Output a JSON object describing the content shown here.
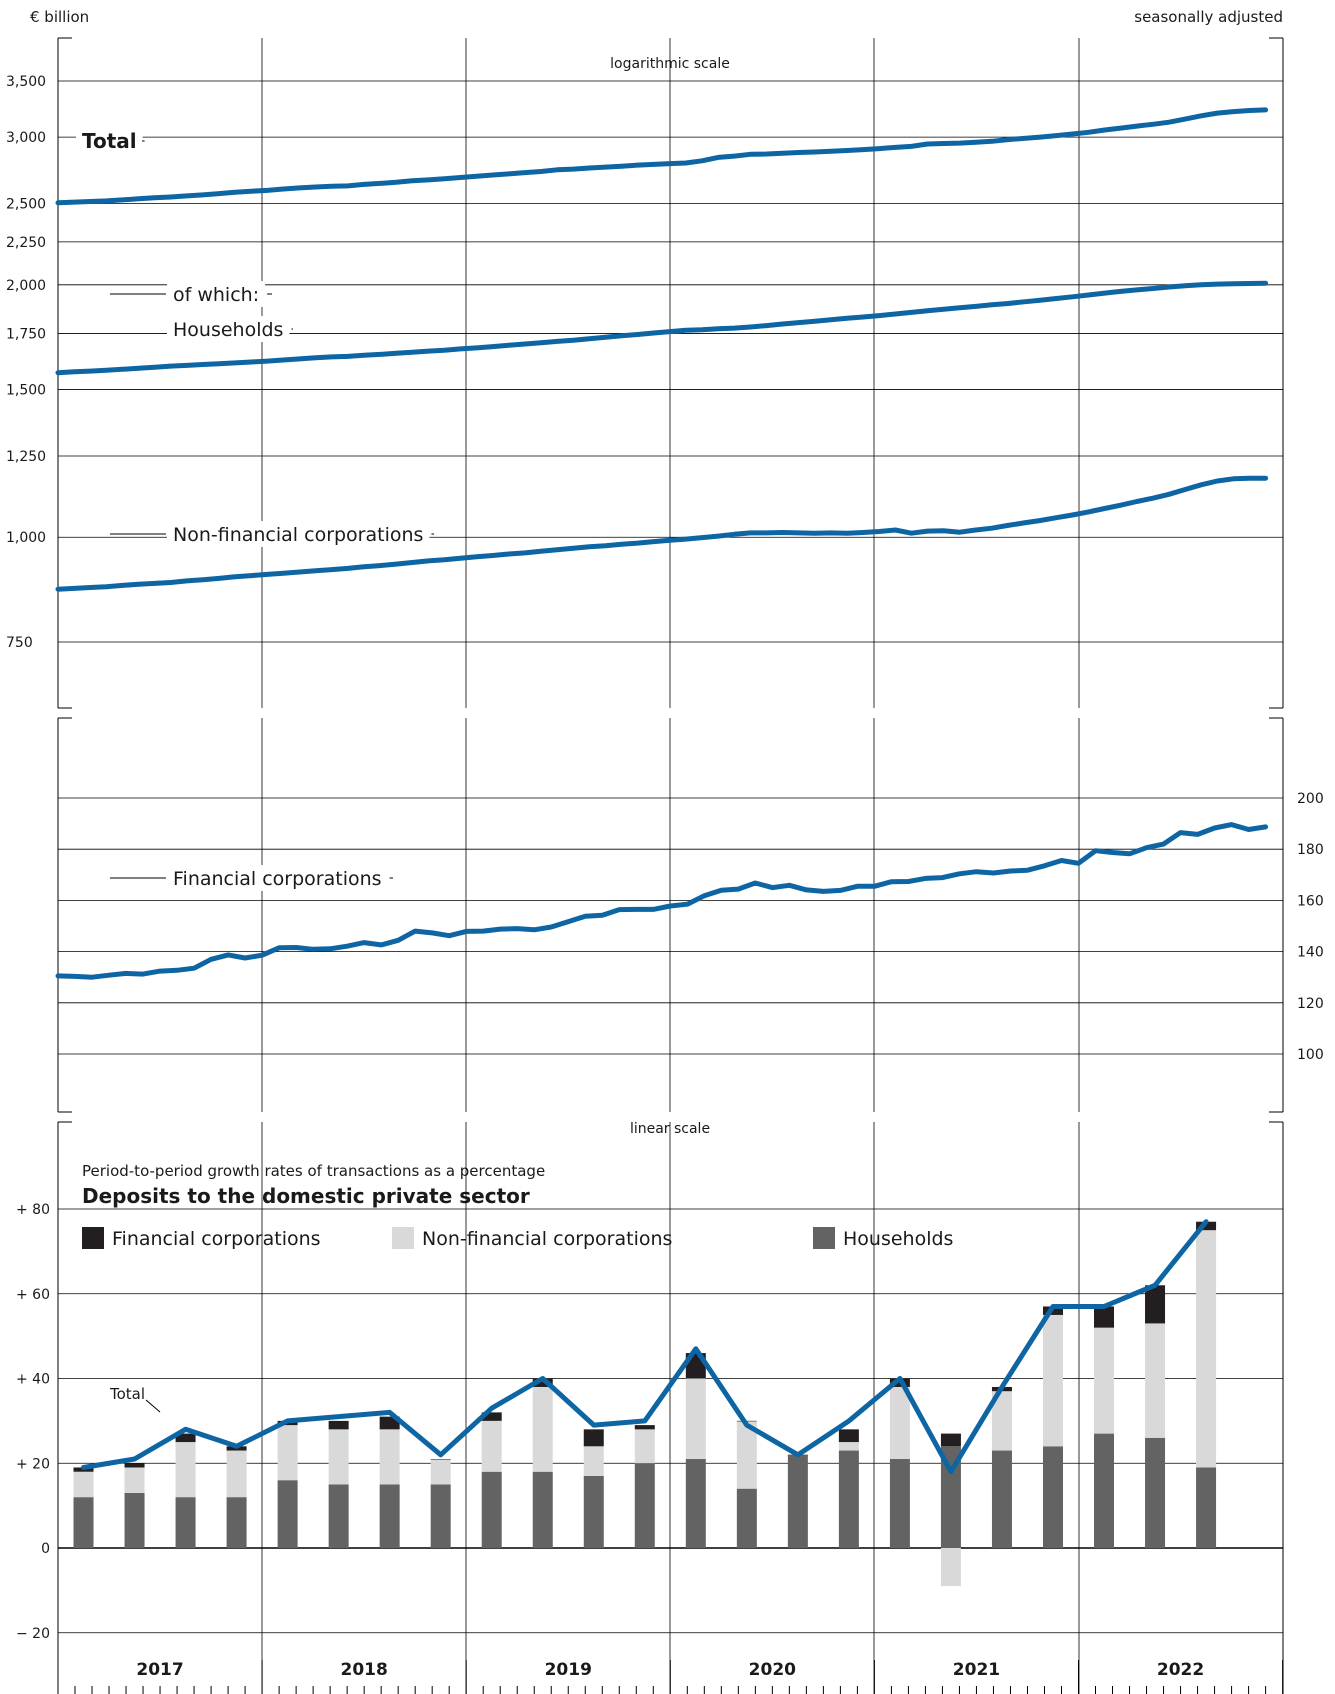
{
  "header": {
    "unit": "€ billion",
    "adjustment": "seasonally adjusted"
  },
  "colors": {
    "line": "#0e65a3",
    "households": "#636363",
    "nonfinancial": "#d9d9d9",
    "financial": "#231f20",
    "grid": "#000000"
  },
  "chart_data": [
    {
      "type": "line",
      "scale_label": "logarithmic scale",
      "log_scale": true,
      "ylim": [
        660,
        3800
      ],
      "y_ticks": [
        "750",
        "1,000",
        "1,250",
        "1,500",
        "1,750",
        "2,000",
        "2,250",
        "2,500",
        "3,000",
        "3,500"
      ],
      "x_range": [
        "2017-01",
        "2022-12"
      ],
      "series": [
        {
          "name": "Total",
          "label_style": "bold",
          "start": "2017-01",
          "values": [
            2505,
            2510,
            2514,
            2518,
            2525,
            2533,
            2540,
            2545,
            2553,
            2560,
            2569,
            2578,
            2586,
            2592,
            2602,
            2610,
            2616,
            2621,
            2624,
            2635,
            2642,
            2650,
            2662,
            2668,
            2676,
            2685,
            2695,
            2704,
            2712,
            2722,
            2730,
            2743,
            2748,
            2756,
            2763,
            2770,
            2778,
            2784,
            2790,
            2794,
            2811,
            2838,
            2848,
            2862,
            2864,
            2870,
            2876,
            2880,
            2886,
            2892,
            2899,
            2907,
            2917,
            2925,
            2944,
            2948,
            2951,
            2958,
            2966,
            2980,
            2990,
            3000,
            3013,
            3026,
            3040,
            3059,
            3075,
            3092,
            3108,
            3126,
            3152,
            3181,
            3205,
            3218,
            3228,
            3233
          ],
          "x_step_months": 0.95
        },
        {
          "name": "Households",
          "prefix": "of which:",
          "start": "2017-01",
          "values": [
            1571,
            1575,
            1578,
            1582,
            1586,
            1590,
            1595,
            1600,
            1603,
            1607,
            1610,
            1614,
            1618,
            1622,
            1627,
            1632,
            1637,
            1641,
            1643,
            1648,
            1652,
            1657,
            1662,
            1667,
            1671,
            1677,
            1682,
            1688,
            1694,
            1700,
            1706,
            1712,
            1718,
            1725,
            1732,
            1739,
            1745,
            1752,
            1759,
            1765,
            1768,
            1773,
            1776,
            1781,
            1788,
            1796,
            1803,
            1810,
            1817,
            1824,
            1831,
            1838,
            1846,
            1854,
            1862,
            1870,
            1878,
            1885,
            1893,
            1900,
            1909,
            1917,
            1926,
            1935,
            1945,
            1955,
            1964,
            1972,
            1980,
            1988,
            1995,
            2000,
            2004,
            2006,
            2007,
            2008
          ]
        },
        {
          "name": "Non-financial corporations",
          "start": "2017-01",
          "values": [
            867,
            869,
            871,
            873,
            876,
            879,
            881,
            883,
            887,
            890,
            893,
            897,
            900,
            903,
            906,
            909,
            912,
            915,
            918,
            922,
            925,
            929,
            933,
            937,
            940,
            944,
            948,
            951,
            955,
            958,
            962,
            966,
            970,
            974,
            977,
            981,
            984,
            988,
            992,
            995,
            999,
            1003,
            1008,
            1012,
            1012,
            1013,
            1012,
            1011,
            1012,
            1011,
            1013,
            1016,
            1020,
            1011,
            1017,
            1018,
            1014,
            1020,
            1025,
            1033,
            1040,
            1047,
            1055,
            1063,
            1072,
            1082,
            1092,
            1103,
            1113,
            1125,
            1140,
            1155,
            1167,
            1174,
            1176,
            1176
          ]
        }
      ]
    },
    {
      "type": "line",
      "scale_label": "linear scale",
      "ylim": [
        88,
        214
      ],
      "y_ticks": [
        "100",
        "120",
        "140",
        "160",
        "180",
        "200"
      ],
      "x_range": [
        "2017-01",
        "2022-12"
      ],
      "series": [
        {
          "name": "Financial corporations",
          "start": "2017-01",
          "values": [
            130.5,
            130.3,
            130.0,
            130.8,
            131.5,
            131.2,
            132.4,
            132.7,
            133.5,
            137.0,
            138.7,
            137.5,
            138.6,
            141.5,
            141.6,
            140.9,
            141.1,
            142.1,
            143.5,
            142.6,
            144.4,
            148.0,
            147.3,
            146.2,
            147.9,
            148.0,
            148.8,
            149.0,
            148.5,
            149.6,
            151.7,
            153.8,
            154.2,
            156.4,
            156.5,
            156.5,
            157.8,
            158.5,
            161.8,
            164.0,
            164.4,
            166.8,
            165.0,
            165.9,
            164.1,
            163.5,
            163.9,
            165.5,
            165.5,
            167.3,
            167.4,
            168.6,
            168.9,
            170.4,
            171.2,
            170.7,
            171.5,
            171.8,
            173.5,
            175.6,
            174.5,
            179.4,
            178.7,
            178.2,
            180.6,
            182.0,
            186.5,
            185.8,
            188.3,
            189.6,
            187.7,
            188.7
          ]
        }
      ]
    },
    {
      "type": "bar",
      "subtitle": "Period-to-period growth rates of transactions as a percentage",
      "title": "Deposits to the domestic private sector",
      "ylim": [
        -30,
        87
      ],
      "y_ticks": [
        "− 20",
        "0",
        "+ 20",
        "+ 40",
        "+ 60",
        "+ 80"
      ],
      "y_tick_values": [
        -20,
        0,
        20,
        40,
        60,
        80
      ],
      "categories": [
        "2017-Q1",
        "2017-Q2",
        "2017-Q3",
        "2017-Q4",
        "2018-Q1",
        "2018-Q2",
        "2018-Q3",
        "2018-Q4",
        "2019-Q1",
        "2019-Q2",
        "2019-Q3",
        "2019-Q4",
        "2020-Q1",
        "2020-Q2",
        "2020-Q3",
        "2020-Q4",
        "2021-Q1",
        "2021-Q2",
        "2021-Q3",
        "2021-Q4",
        "2022-Q1",
        "2022-Q2",
        "2022-Q3"
      ],
      "series": [
        {
          "name": "Households",
          "color_key": "households",
          "values": [
            12,
            13,
            12,
            12,
            16,
            15,
            15,
            15,
            18,
            18,
            17,
            20,
            21,
            14,
            22,
            23,
            21,
            24,
            23,
            24,
            27,
            26,
            19
          ]
        },
        {
          "name": "Non-financial corporations",
          "color_key": "nonfinancial",
          "values": [
            6,
            6,
            13,
            11,
            13,
            13,
            13,
            6,
            12,
            20,
            7,
            8,
            19,
            16,
            0,
            2,
            17,
            -9,
            14,
            31,
            25,
            27,
            56
          ]
        },
        {
          "name": "Financial corporations",
          "color_key": "financial",
          "values": [
            1,
            1,
            2,
            1,
            1,
            2,
            3,
            0,
            2,
            2,
            4,
            1,
            6,
            0,
            0,
            3,
            2,
            3,
            1,
            2,
            5,
            9,
            2
          ]
        },
        {
          "name": "Total",
          "type": "line",
          "values": [
            19,
            21,
            28,
            24,
            30,
            31,
            32,
            22,
            33,
            40,
            29,
            30,
            47,
            29,
            22,
            30,
            40,
            18,
            38,
            57,
            57,
            62,
            77
          ]
        }
      ]
    }
  ],
  "x_axis": {
    "years": [
      "2017",
      "2018",
      "2019",
      "2020",
      "2021",
      "2022"
    ]
  }
}
